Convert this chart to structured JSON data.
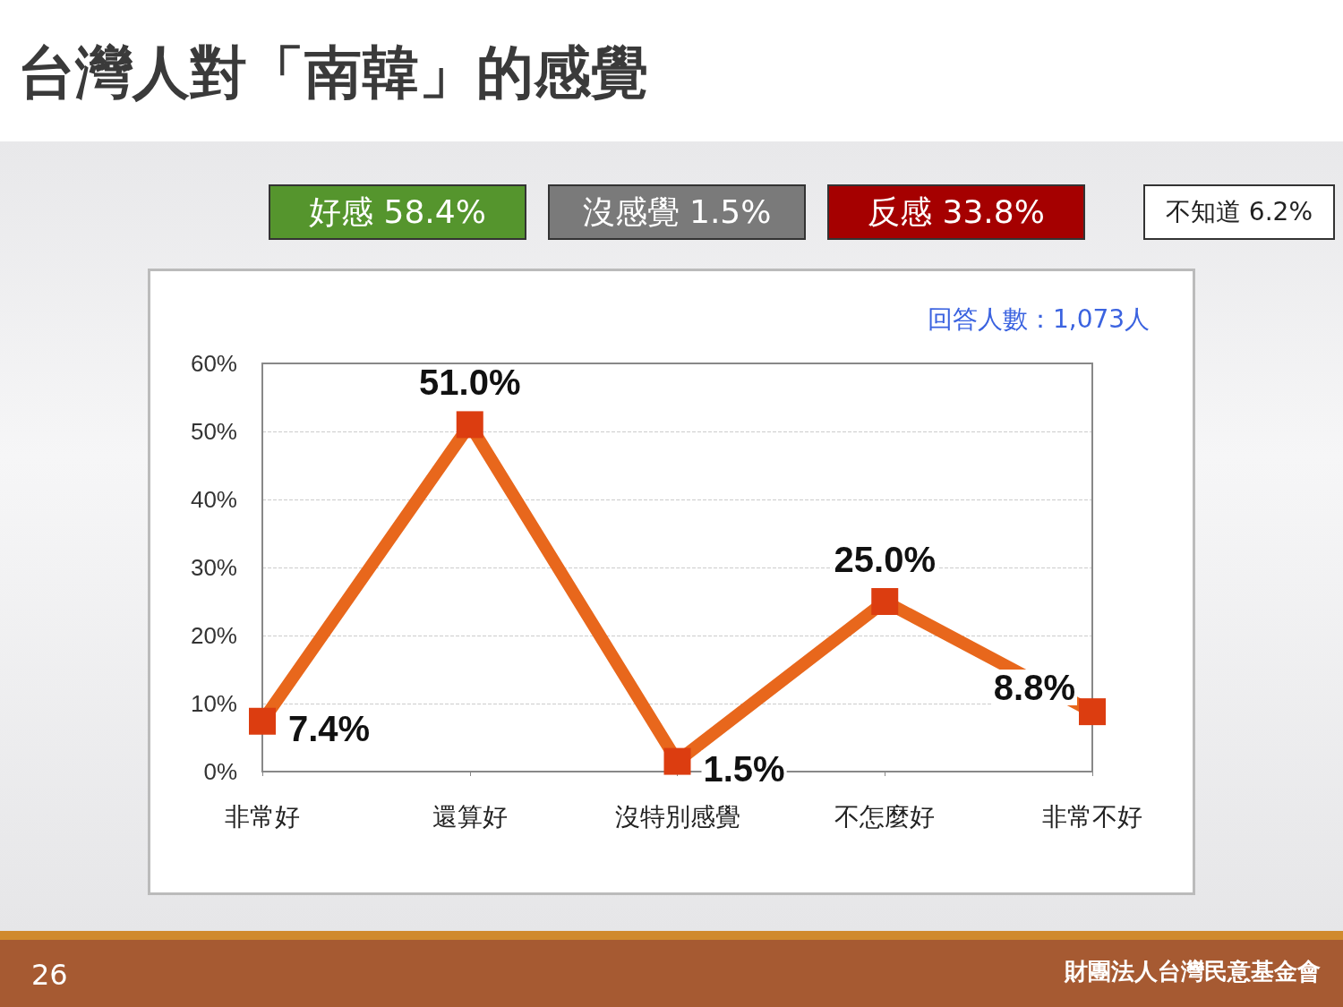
{
  "chart_data": {
    "type": "line",
    "title": "台灣人對「南韓」的感覺",
    "annotations": [
      "好感 58.4%",
      "沒感覺 1.5%",
      "反感 33.8%",
      "不知道 6.2%",
      "回答人數：1,073人",
      "26",
      "財團法人台灣民意基金會"
    ],
    "categories": [
      "非常好",
      "還算好",
      "沒特別感覺",
      "不怎麼好",
      "非常不好"
    ],
    "series": [
      {
        "color": "#e8671c",
        "values": [
          7.4,
          51.0,
          1.5,
          25.0,
          8.8
        ],
        "value_labels": [
          "7.4%",
          "51.0%",
          "1.5%",
          "25.0%",
          "8.8%"
        ]
      }
    ],
    "ylim": [
      0,
      60
    ],
    "yticks": [
      {
        "value": 0,
        "label": "0%"
      },
      {
        "value": 10,
        "label": "10%"
      },
      {
        "value": 20,
        "label": "20%"
      },
      {
        "value": 30,
        "label": "30%"
      },
      {
        "value": 40,
        "label": "40%"
      },
      {
        "value": 50,
        "label": "50%"
      },
      {
        "value": 60,
        "label": "60%"
      }
    ],
    "grid": "y",
    "marker": "square",
    "line_style": "solid"
  }
}
